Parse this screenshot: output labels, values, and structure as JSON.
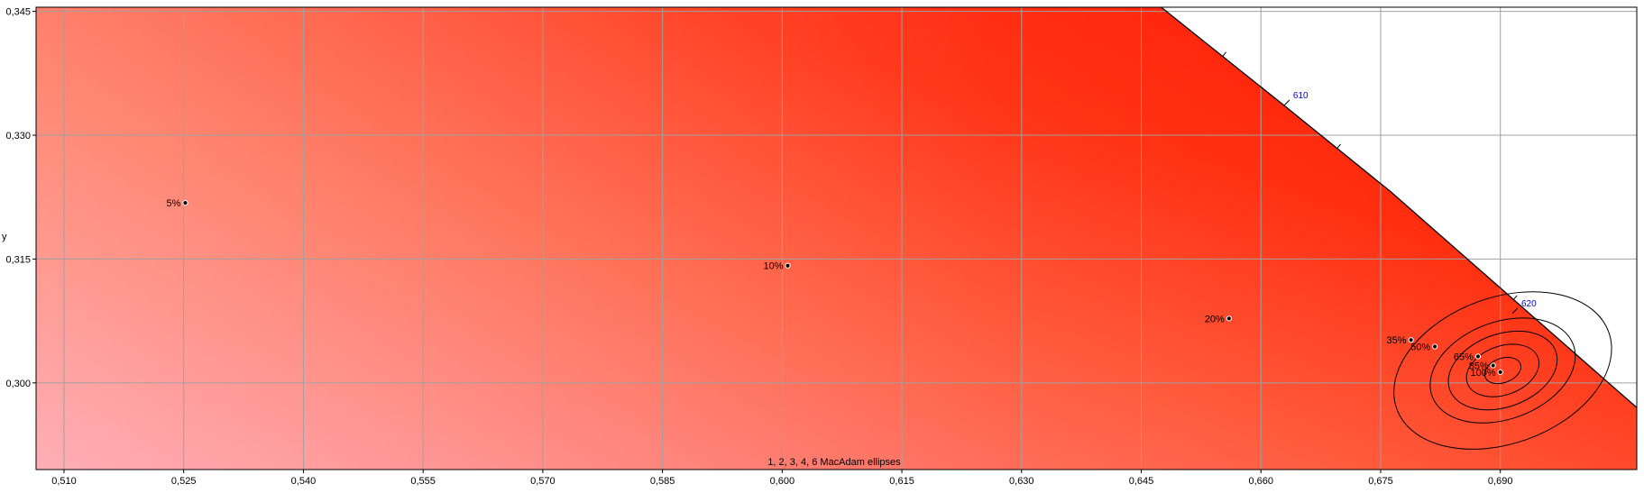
{
  "chart_data": {
    "type": "scatter",
    "title": "",
    "xlabel": "",
    "ylabel": "y",
    "xlim": [
      0.5065,
      0.7071
    ],
    "ylim": [
      0.2895,
      0.3455
    ],
    "x_ticks": [
      0.51,
      0.525,
      0.54,
      0.555,
      0.57,
      0.585,
      0.6,
      0.615,
      0.63,
      0.645,
      0.66,
      0.675,
      0.69
    ],
    "x_tick_labels": [
      "0,510",
      "0,525",
      "0,540",
      "0,555",
      "0,570",
      "0,585",
      "0,600",
      "0,615",
      "0,630",
      "0,645",
      "0,660",
      "0,675",
      "0,690"
    ],
    "y_ticks": [
      0.3,
      0.315,
      0.33,
      0.345
    ],
    "y_tick_labels": [
      "0,300",
      "0,315",
      "0,330",
      "0,345"
    ],
    "grid": true,
    "series": [
      {
        "values": [
          {
            "x": 0.5252,
            "y": 0.3218,
            "label": "5%"
          },
          {
            "x": 0.6007,
            "y": 0.3142,
            "label": "10%"
          },
          {
            "x": 0.656,
            "y": 0.3078,
            "label": "20%"
          },
          {
            "x": 0.6788,
            "y": 0.3052,
            "label": "35%"
          },
          {
            "x": 0.6818,
            "y": 0.3044,
            "label": "50%"
          },
          {
            "x": 0.6872,
            "y": 0.3032,
            "label": "65%"
          },
          {
            "x": 0.6891,
            "y": 0.3021,
            "label": "85%"
          },
          {
            "x": 0.69,
            "y": 0.3013,
            "label": "100%"
          }
        ]
      }
    ],
    "spectral_locus": {
      "points": [
        {
          "x": 0.6475,
          "y": 0.3455
        },
        {
          "x": 0.6629,
          "y": 0.3336
        },
        {
          "x": 0.6762,
          "y": 0.3232
        },
        {
          "x": 0.7071,
          "y": 0.297
        }
      ],
      "wavelength_labels": [
        {
          "label": "610",
          "x": 0.6629,
          "y": 0.3336
        },
        {
          "label": "620",
          "x": 0.6915,
          "y": 0.3084
        }
      ]
    },
    "ellipse_center": {
      "x": 0.6903,
      "y": 0.3015
    },
    "ellipse_steps": [
      1,
      2,
      3,
      4,
      6
    ],
    "ellipse_caption": "1, 2, 3, 4, 6  MacAdam ellipses",
    "colors": {
      "locus_line": "#000000",
      "ellipse": "#000000",
      "wavelength_label": "#0000cc",
      "grid": "#a0a0a0",
      "background": "#ffffff"
    }
  }
}
